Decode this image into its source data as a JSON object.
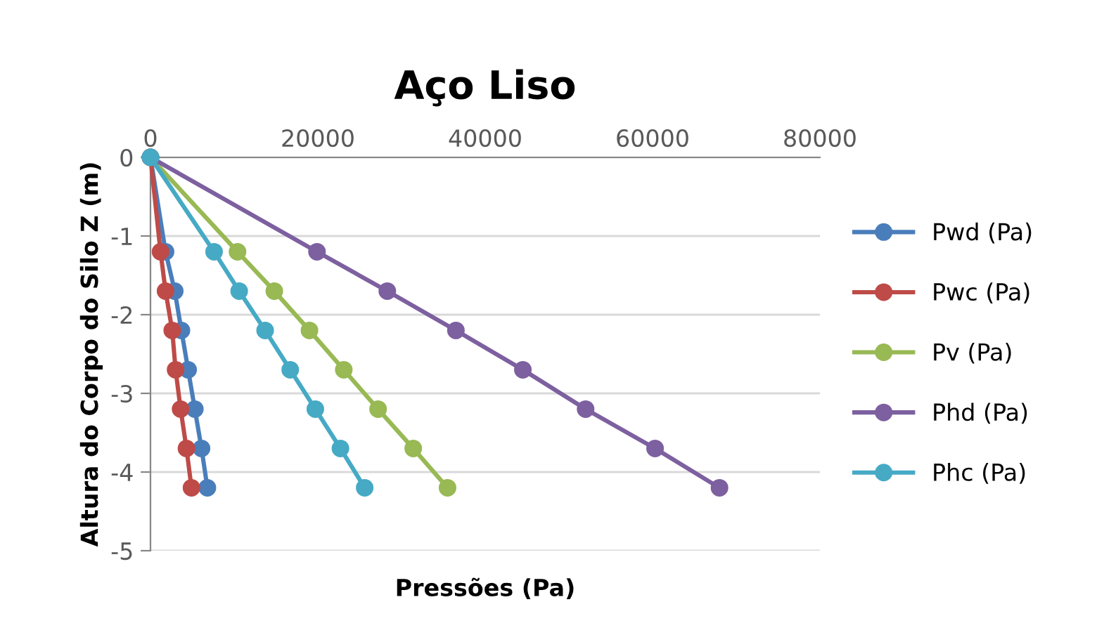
{
  "chart_data": {
    "type": "line",
    "title": "Aço Liso",
    "xlabel": "Pressões (Pa)",
    "ylabel": "Altura do Corpo do Silo Z (m)",
    "xlim": [
      0,
      80000
    ],
    "xticks": [
      0,
      20000,
      40000,
      60000,
      80000
    ],
    "ylim": [
      -5,
      0
    ],
    "yticks": [
      -5,
      -4,
      -3,
      -2,
      -1,
      0
    ],
    "grid": "y",
    "legend": "right",
    "marker": "circle",
    "line_style": "solid",
    "series": [
      {
        "name": "Pwd (Pa)",
        "color": "#4a7ebb",
        "x": [
          0,
          1800,
          2900,
          3700,
          4500,
          5300,
          6100,
          6800
        ],
        "values": [
          0,
          -1.2,
          -1.7,
          -2.2,
          -2.7,
          -3.2,
          -3.7,
          -4.2
        ]
      },
      {
        "name": "Pwc (Pa)",
        "color": "#be4b48",
        "x": [
          0,
          1200,
          1800,
          2600,
          3000,
          3600,
          4300,
          4900
        ],
        "values": [
          0,
          -1.2,
          -1.7,
          -2.2,
          -2.7,
          -3.2,
          -3.7,
          -4.2
        ]
      },
      {
        "name": "Pv (Pa)",
        "color": "#98b954",
        "x": [
          0,
          10400,
          14800,
          19000,
          23100,
          27200,
          31400,
          35500
        ],
        "values": [
          0,
          -1.2,
          -1.7,
          -2.2,
          -2.7,
          -3.2,
          -3.7,
          -4.2
        ]
      },
      {
        "name": "Phd (Pa)",
        "color": "#7d60a0",
        "x": [
          0,
          19900,
          28300,
          36500,
          44500,
          52000,
          60300,
          68000
        ],
        "values": [
          0,
          -1.2,
          -1.7,
          -2.2,
          -2.7,
          -3.2,
          -3.7,
          -4.2
        ]
      },
      {
        "name": "Phc (Pa)",
        "color": "#46aac5",
        "x": [
          0,
          7600,
          10600,
          13700,
          16700,
          19700,
          22700,
          25600
        ],
        "values": [
          0,
          -1.2,
          -1.7,
          -2.2,
          -2.7,
          -3.2,
          -3.7,
          -4.2
        ]
      }
    ]
  }
}
